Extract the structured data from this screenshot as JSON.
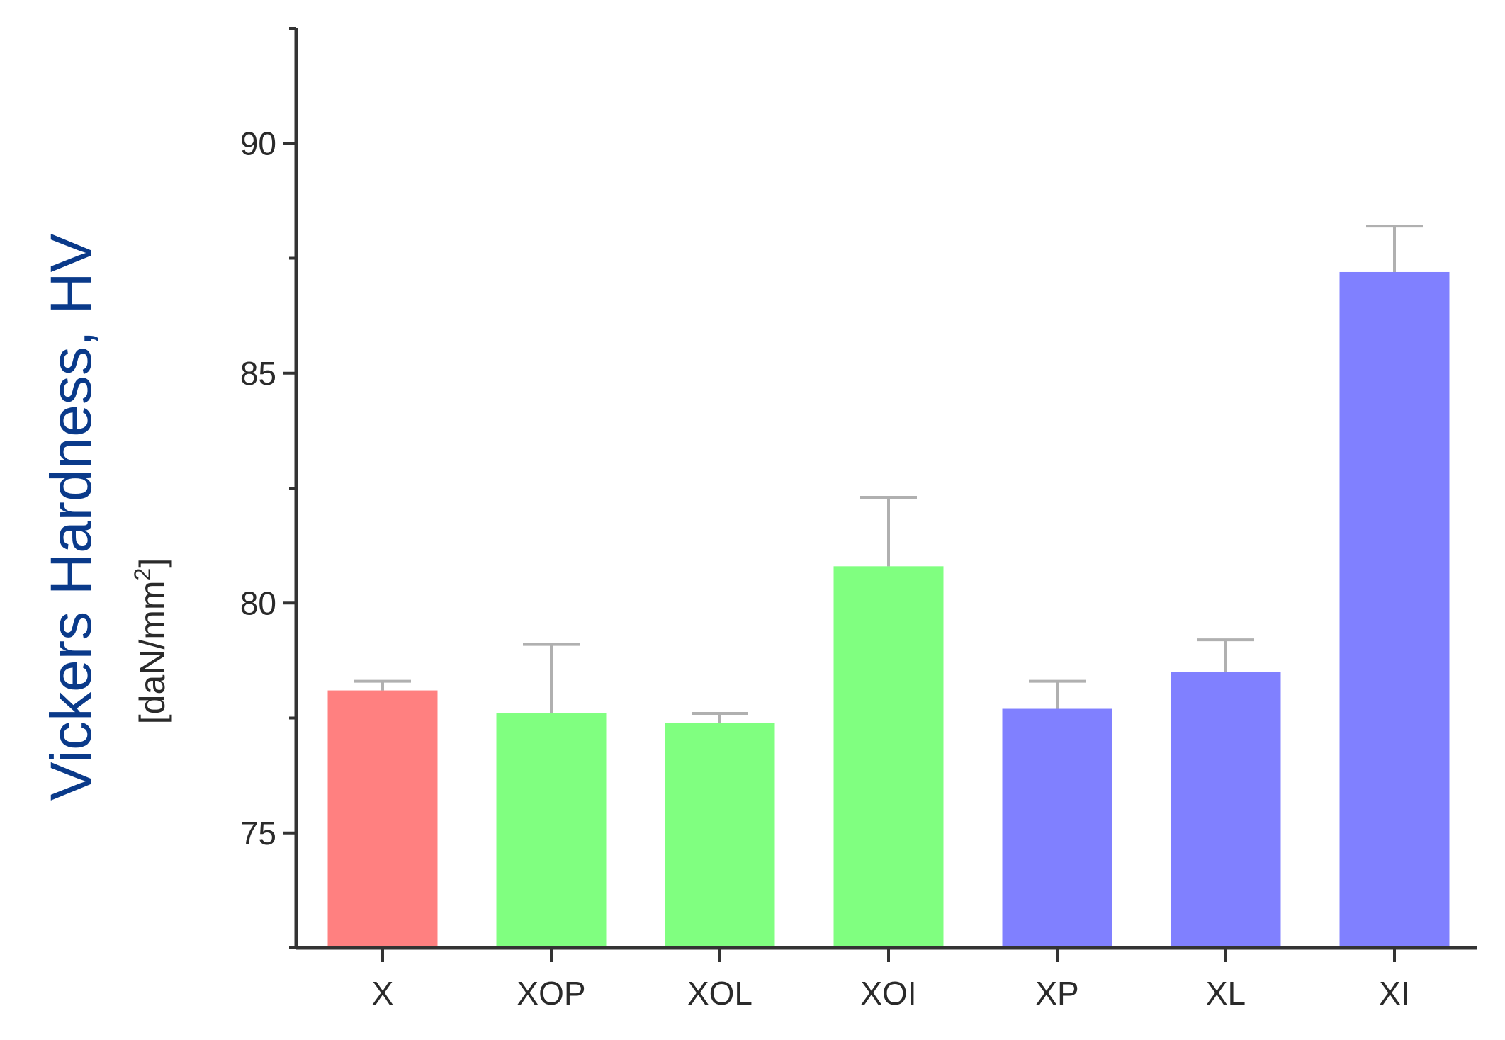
{
  "chart_data": {
    "type": "bar",
    "categories": [
      "X",
      "XOP",
      "XOL",
      "XOI",
      "XP",
      "XL",
      "XI"
    ],
    "values": [
      78.1,
      77.6,
      77.4,
      80.8,
      77.7,
      78.5,
      87.2
    ],
    "errors": [
      0.2,
      1.5,
      0.2,
      1.5,
      0.6,
      0.7,
      1.0
    ],
    "colors": [
      "#ff8080",
      "#80ff80",
      "#80ff80",
      "#80ff80",
      "#8080ff",
      "#8080ff",
      "#8080ff"
    ],
    "ylabel": "Vickers Hardness, HV",
    "ylabel_unit_prefix": "[daN/mm",
    "ylabel_unit_sup": "2",
    "ylabel_unit_suffix": "]",
    "ylim": [
      72.5,
      92.5
    ],
    "yticks": [
      75,
      80,
      85,
      90
    ],
    "ytick_labels": [
      "75",
      "80",
      "85",
      "90"
    ],
    "grid": false
  }
}
